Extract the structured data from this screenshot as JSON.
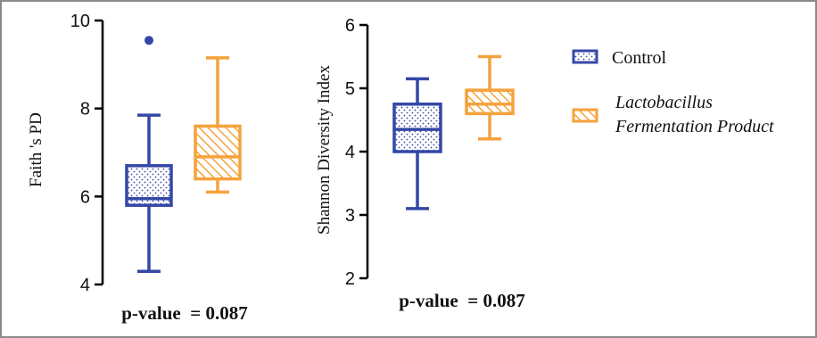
{
  "colors": {
    "control": "#3547a6",
    "lacto": "#f5a23c",
    "axis": "#000000"
  },
  "chart_data": [
    {
      "type": "box",
      "ylabel": "Faith 's PD",
      "ylim": [
        4,
        10
      ],
      "yticks": [
        "4",
        "6",
        "8",
        "10"
      ],
      "annotation": "p-value  = 0.087",
      "series": [
        {
          "name": "Control",
          "whisker_low": 4.3,
          "q1": 5.8,
          "median": 5.95,
          "q3": 6.7,
          "whisker_high": 7.85,
          "outliers": [
            9.55
          ]
        },
        {
          "name": "Lactobacillus Fermentation Product",
          "whisker_low": 6.1,
          "q1": 6.4,
          "median": 6.9,
          "q3": 7.6,
          "whisker_high": 9.15,
          "outliers": []
        }
      ]
    },
    {
      "type": "box",
      "ylabel": "Shannon Diversity Index",
      "ylim": [
        2,
        6
      ],
      "yticks": [
        "2",
        "3",
        "4",
        "5",
        "6"
      ],
      "annotation": "p-value  = 0.087",
      "series": [
        {
          "name": "Control",
          "whisker_low": 3.1,
          "q1": 4.0,
          "median": 4.35,
          "q3": 4.75,
          "whisker_high": 5.15,
          "outliers": []
        },
        {
          "name": "Lactobacillus Fermentation Product",
          "whisker_low": 4.2,
          "q1": 4.6,
          "median": 4.75,
          "q3": 4.97,
          "whisker_high": 5.5,
          "outliers": []
        }
      ]
    }
  ],
  "legend": {
    "items": [
      {
        "label_lines": [
          "Control"
        ],
        "pattern": "dots"
      },
      {
        "label_lines": [
          "Lactobacillus",
          "Fermentation Product"
        ],
        "pattern": "hatch"
      }
    ]
  }
}
